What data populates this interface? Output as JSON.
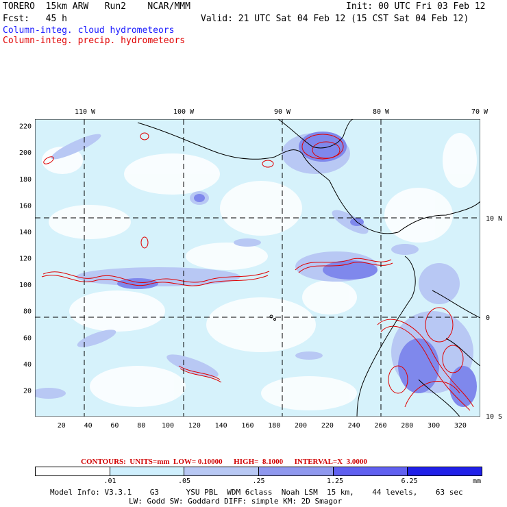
{
  "header": {
    "model": "TORERO  15km ARW   Run2    NCAR/MMM",
    "init": "Init: 00 UTC Fri 03 Feb 12",
    "fcst": "Fcst:   45 h",
    "valid": "Valid: 21 UTC Sat 04 Feb 12 (15 CST Sat 04 Feb 12)",
    "field1": "Column-integ. cloud hydrometeors",
    "field2": "Column-integ. precip. hydrometeors",
    "field1_color": "#1a1aff",
    "field2_color": "#e00000"
  },
  "map": {
    "lon_labels": [
      "110 W",
      "100 W",
      "90 W",
      "80 W",
      "70 W"
    ],
    "lat_labels": [
      "10 N",
      "0",
      "10 S"
    ],
    "x_ticks": [
      "20",
      "40",
      "60",
      "80",
      "100",
      "120",
      "140",
      "160",
      "180",
      "200",
      "220",
      "240",
      "260",
      "280",
      "300",
      "320"
    ],
    "y_ticks": [
      "20",
      "40",
      "60",
      "80",
      "100",
      "120",
      "140",
      "160",
      "180",
      "200",
      "220"
    ]
  },
  "contours": {
    "text": "CONTOURS:  UNITS=mm  LOW= 0.10000      HIGH=  8.1000      INTERVAL=X  3.0000"
  },
  "colorbar": {
    "labels": [
      ".01",
      ".05",
      ".25",
      "1.25",
      "6.25"
    ],
    "unit": "mm",
    "colors": [
      "#ffffff",
      "#cfeffd",
      "#b8c8f4",
      "#8f98ee",
      "#6060f0",
      "#2020e8"
    ]
  },
  "footer": {
    "line1": "Model Info: V3.3.1    G3      YSU PBL  WDM 6class  Noah LSM  15 km,    44 levels,    63 sec",
    "line2": "LW: Godd SW: Goddard DIFF: simple KM: 2D Smagor"
  }
}
